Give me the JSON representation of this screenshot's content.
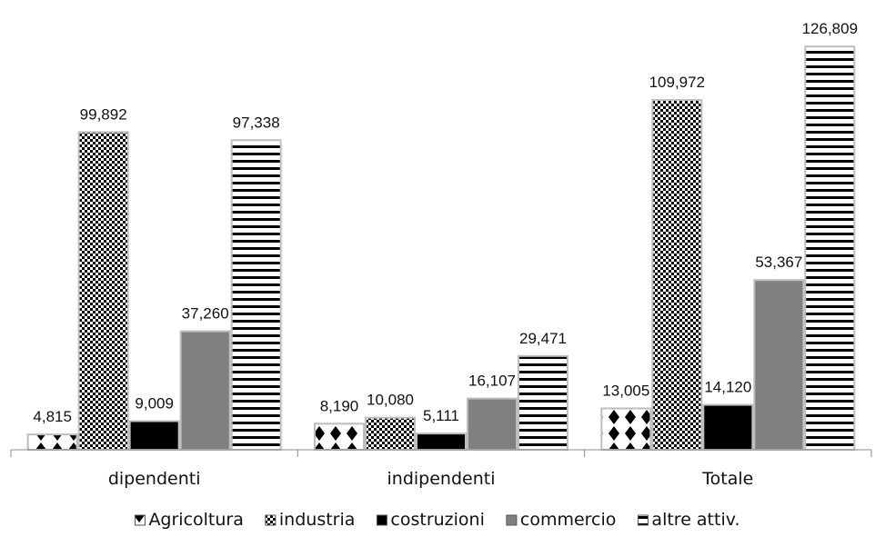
{
  "chart_data": {
    "type": "bar",
    "categories": [
      "dipendenti",
      "indipendenti",
      "Totale"
    ],
    "series": [
      {
        "name": "Agricoltura",
        "values": [
          4815,
          8190,
          13005
        ],
        "labels": [
          "4,815",
          "8,190",
          "13,005"
        ],
        "pattern": "diamond-dots"
      },
      {
        "name": "industria",
        "values": [
          99892,
          10080,
          109972
        ],
        "labels": [
          "99,892",
          "10,080",
          "109,972"
        ],
        "pattern": "checker"
      },
      {
        "name": "costruzioni",
        "values": [
          9009,
          5111,
          14120
        ],
        "labels": [
          "9,009",
          "5,111",
          "14,120"
        ],
        "pattern": "solid-black"
      },
      {
        "name": "commercio",
        "values": [
          37260,
          16107,
          53367
        ],
        "labels": [
          "37,260",
          "16,107",
          "53,367"
        ],
        "pattern": "solid-gray"
      },
      {
        "name": "altre attiv.",
        "values": [
          97338,
          29471,
          126809
        ],
        "labels": [
          "97,338",
          "29,471",
          "126,809"
        ],
        "pattern": "horizontal-lines"
      }
    ],
    "ylim": [
      0,
      130000
    ],
    "grid": false,
    "legend": "bottom",
    "title": "",
    "xlabel": "",
    "ylabel": ""
  }
}
